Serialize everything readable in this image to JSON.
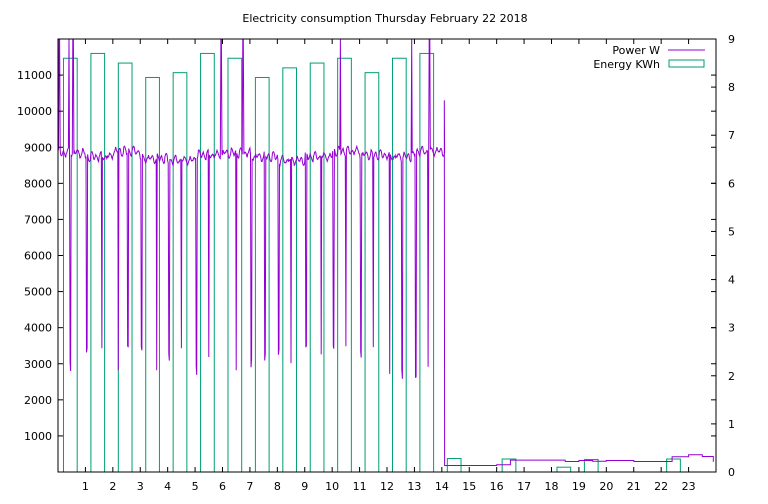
{
  "chart_data": {
    "type": "bar",
    "title": "Electricity consumption Thursday February 22 2018",
    "xlabel": "",
    "ylabel": "",
    "y2label": "",
    "x_ticks": [
      1,
      2,
      3,
      4,
      5,
      6,
      7,
      8,
      9,
      10,
      11,
      12,
      13,
      14,
      15,
      16,
      17,
      18,
      19,
      20,
      21,
      22,
      23
    ],
    "xlim": [
      0,
      24
    ],
    "ylim": [
      0,
      12000
    ],
    "y_ticks": [
      1000,
      2000,
      3000,
      4000,
      5000,
      6000,
      7000,
      8000,
      9000,
      10000,
      11000
    ],
    "y2lim": [
      0,
      9
    ],
    "y2_ticks": [
      0,
      1,
      2,
      3,
      4,
      5,
      6,
      7,
      8,
      9
    ],
    "grid": false,
    "legend_position": "top-right",
    "colors": {
      "power": "#9400d3",
      "energy": "#009e73"
    },
    "series": [
      {
        "name": "Power W",
        "kind": "line",
        "axis": "left",
        "baseline_high": [
          8900,
          8800,
          8950,
          8750,
          8700,
          8850,
          8900,
          8800,
          8700,
          8800,
          8950,
          8850,
          8800,
          8950,
          8950
        ],
        "spikes_low_at": [
          0.05,
          0.45,
          1.05,
          1.6,
          2.2,
          2.55,
          3.05,
          3.6,
          4.05,
          4.5,
          5.05,
          5.5,
          5.95,
          6.5,
          7.05,
          7.55,
          8.05,
          8.5,
          9.05,
          9.6,
          10.05,
          10.5,
          11.05,
          11.5,
          12.1,
          12.55,
          13.05,
          13.5
        ],
        "spikes_low_value": 2500,
        "spikes_high_at": [
          0.05,
          0.4,
          0.55,
          5.95,
          6.75,
          10.3,
          12.9,
          13.55
        ],
        "drop_time": 14.1,
        "peak_before_drop": 10300,
        "after": {
          "x": [
            14.1,
            15.0,
            16.0,
            16.5,
            17.0,
            18.0,
            18.5,
            19.0,
            19.5,
            20.0,
            21.0,
            22.0,
            22.4,
            23.0,
            23.5,
            23.9
          ],
          "y": [
            180,
            180,
            200,
            330,
            330,
            330,
            290,
            320,
            300,
            320,
            290,
            290,
            420,
            480,
            430,
            280
          ]
        }
      },
      {
        "name": "Energy KWh",
        "kind": "bar",
        "axis": "right",
        "x": [
          0,
          1,
          2,
          3,
          4,
          5,
          6,
          7,
          8,
          9,
          10,
          11,
          12,
          13,
          14,
          15,
          16,
          17,
          18,
          19,
          20,
          21,
          22,
          23
        ],
        "values": [
          8.6,
          8.7,
          8.5,
          8.2,
          8.3,
          8.7,
          8.6,
          8.2,
          8.4,
          8.5,
          8.6,
          8.3,
          8.6,
          8.7,
          0.28,
          0,
          0.27,
          0,
          0.1,
          0.26,
          0,
          0,
          0.27,
          0
        ]
      }
    ]
  }
}
